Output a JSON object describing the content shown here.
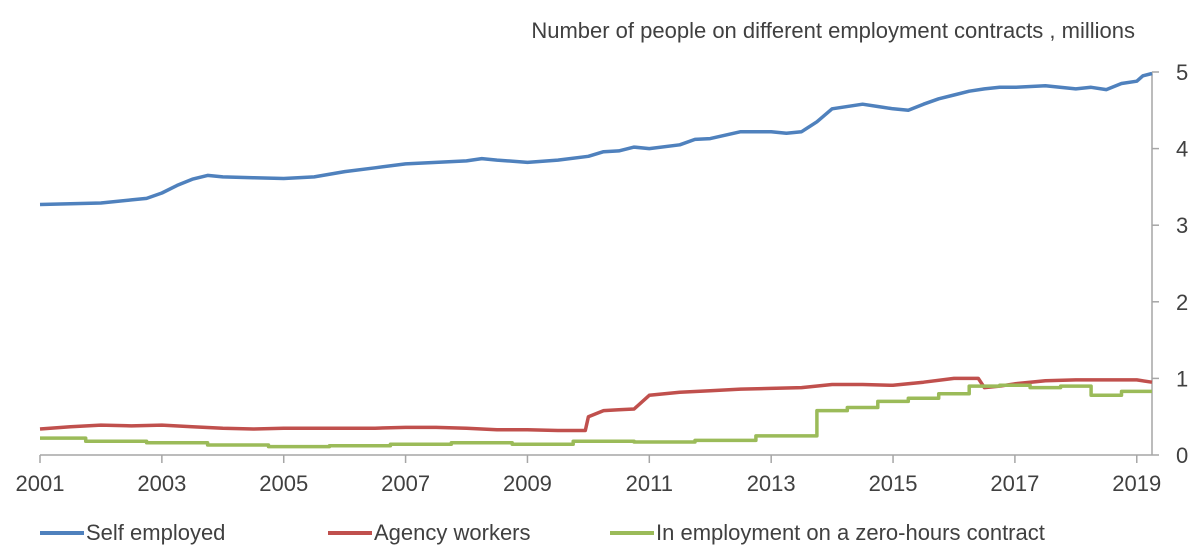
{
  "chart_data": {
    "type": "line",
    "title": "Number of people on different employment contracts , millions",
    "xlabel": "",
    "ylabel": "",
    "xlim": [
      2001,
      2019.25
    ],
    "ylim": [
      0,
      5
    ],
    "x_ticks": [
      2001,
      2003,
      2005,
      2007,
      2009,
      2011,
      2013,
      2015,
      2017,
      2019
    ],
    "y_ticks": [
      0,
      1,
      2,
      3,
      4,
      5
    ],
    "y_axis_side": "right",
    "grid": false,
    "legend_position": "bottom",
    "series": [
      {
        "name": "Self employed",
        "color": "#4F81BD",
        "points": [
          [
            2001.0,
            3.27
          ],
          [
            2001.5,
            3.28
          ],
          [
            2002.0,
            3.29
          ],
          [
            2002.5,
            3.33
          ],
          [
            2002.75,
            3.35
          ],
          [
            2003.0,
            3.42
          ],
          [
            2003.25,
            3.52
          ],
          [
            2003.5,
            3.6
          ],
          [
            2003.75,
            3.65
          ],
          [
            2004.0,
            3.63
          ],
          [
            2004.5,
            3.62
          ],
          [
            2005.0,
            3.61
          ],
          [
            2005.5,
            3.63
          ],
          [
            2006.0,
            3.7
          ],
          [
            2006.5,
            3.75
          ],
          [
            2007.0,
            3.8
          ],
          [
            2007.5,
            3.82
          ],
          [
            2008.0,
            3.84
          ],
          [
            2008.25,
            3.87
          ],
          [
            2008.5,
            3.85
          ],
          [
            2009.0,
            3.82
          ],
          [
            2009.5,
            3.85
          ],
          [
            2010.0,
            3.9
          ],
          [
            2010.25,
            3.96
          ],
          [
            2010.5,
            3.97
          ],
          [
            2010.75,
            4.02
          ],
          [
            2011.0,
            4.0
          ],
          [
            2011.5,
            4.05
          ],
          [
            2011.75,
            4.12
          ],
          [
            2012.0,
            4.13
          ],
          [
            2012.5,
            4.22
          ],
          [
            2013.0,
            4.22
          ],
          [
            2013.25,
            4.2
          ],
          [
            2013.5,
            4.22
          ],
          [
            2013.75,
            4.35
          ],
          [
            2014.0,
            4.52
          ],
          [
            2014.5,
            4.58
          ],
          [
            2014.75,
            4.55
          ],
          [
            2015.0,
            4.52
          ],
          [
            2015.25,
            4.5
          ],
          [
            2015.5,
            4.58
          ],
          [
            2015.75,
            4.65
          ],
          [
            2016.0,
            4.7
          ],
          [
            2016.25,
            4.75
          ],
          [
            2016.5,
            4.78
          ],
          [
            2016.75,
            4.8
          ],
          [
            2017.0,
            4.8
          ],
          [
            2017.5,
            4.82
          ],
          [
            2018.0,
            4.78
          ],
          [
            2018.25,
            4.8
          ],
          [
            2018.5,
            4.77
          ],
          [
            2018.75,
            4.85
          ],
          [
            2019.0,
            4.88
          ],
          [
            2019.1,
            4.95
          ],
          [
            2019.25,
            4.98
          ]
        ]
      },
      {
        "name": "Agency workers",
        "color": "#C0504D",
        "points": [
          [
            2001.0,
            0.34
          ],
          [
            2001.5,
            0.37
          ],
          [
            2002.0,
            0.39
          ],
          [
            2002.5,
            0.38
          ],
          [
            2003.0,
            0.39
          ],
          [
            2003.5,
            0.37
          ],
          [
            2004.0,
            0.35
          ],
          [
            2004.5,
            0.34
          ],
          [
            2005.0,
            0.35
          ],
          [
            2005.5,
            0.35
          ],
          [
            2006.0,
            0.35
          ],
          [
            2006.5,
            0.35
          ],
          [
            2007.0,
            0.36
          ],
          [
            2007.5,
            0.36
          ],
          [
            2008.0,
            0.35
          ],
          [
            2008.5,
            0.33
          ],
          [
            2009.0,
            0.33
          ],
          [
            2009.5,
            0.32
          ],
          [
            2009.95,
            0.32
          ],
          [
            2010.0,
            0.5
          ],
          [
            2010.25,
            0.58
          ],
          [
            2010.5,
            0.59
          ],
          [
            2010.75,
            0.6
          ],
          [
            2011.0,
            0.78
          ],
          [
            2011.5,
            0.82
          ],
          [
            2012.0,
            0.84
          ],
          [
            2012.5,
            0.86
          ],
          [
            2013.0,
            0.87
          ],
          [
            2013.5,
            0.88
          ],
          [
            2014.0,
            0.92
          ],
          [
            2014.5,
            0.92
          ],
          [
            2015.0,
            0.91
          ],
          [
            2015.5,
            0.95
          ],
          [
            2016.0,
            1.0
          ],
          [
            2016.4,
            1.0
          ],
          [
            2016.5,
            0.88
          ],
          [
            2016.75,
            0.9
          ],
          [
            2017.0,
            0.93
          ],
          [
            2017.5,
            0.97
          ],
          [
            2018.0,
            0.98
          ],
          [
            2018.5,
            0.98
          ],
          [
            2019.0,
            0.98
          ],
          [
            2019.25,
            0.95
          ]
        ]
      },
      {
        "name": "In employment on a zero-hours contract",
        "color": "#9BBB59",
        "points": [
          [
            2001.0,
            0.22
          ],
          [
            2001.75,
            0.22
          ],
          [
            2001.75,
            0.18
          ],
          [
            2002.75,
            0.18
          ],
          [
            2002.75,
            0.16
          ],
          [
            2003.75,
            0.16
          ],
          [
            2003.75,
            0.13
          ],
          [
            2004.75,
            0.13
          ],
          [
            2004.75,
            0.11
          ],
          [
            2005.75,
            0.11
          ],
          [
            2005.75,
            0.12
          ],
          [
            2006.75,
            0.12
          ],
          [
            2006.75,
            0.14
          ],
          [
            2007.75,
            0.14
          ],
          [
            2007.75,
            0.16
          ],
          [
            2008.75,
            0.16
          ],
          [
            2008.75,
            0.14
          ],
          [
            2009.75,
            0.14
          ],
          [
            2009.75,
            0.18
          ],
          [
            2010.75,
            0.18
          ],
          [
            2010.75,
            0.17
          ],
          [
            2011.75,
            0.17
          ],
          [
            2011.75,
            0.19
          ],
          [
            2012.75,
            0.19
          ],
          [
            2012.75,
            0.25
          ],
          [
            2013.75,
            0.25
          ],
          [
            2013.75,
            0.58
          ],
          [
            2014.25,
            0.58
          ],
          [
            2014.25,
            0.62
          ],
          [
            2014.75,
            0.62
          ],
          [
            2014.75,
            0.7
          ],
          [
            2015.25,
            0.7
          ],
          [
            2015.25,
            0.74
          ],
          [
            2015.75,
            0.74
          ],
          [
            2015.75,
            0.8
          ],
          [
            2016.25,
            0.8
          ],
          [
            2016.25,
            0.9
          ],
          [
            2016.75,
            0.9
          ],
          [
            2016.75,
            0.91
          ],
          [
            2017.25,
            0.91
          ],
          [
            2017.25,
            0.88
          ],
          [
            2017.75,
            0.88
          ],
          [
            2017.75,
            0.9
          ],
          [
            2018.25,
            0.9
          ],
          [
            2018.25,
            0.78
          ],
          [
            2018.75,
            0.78
          ],
          [
            2018.75,
            0.83
          ],
          [
            2019.25,
            0.83
          ]
        ]
      }
    ]
  }
}
